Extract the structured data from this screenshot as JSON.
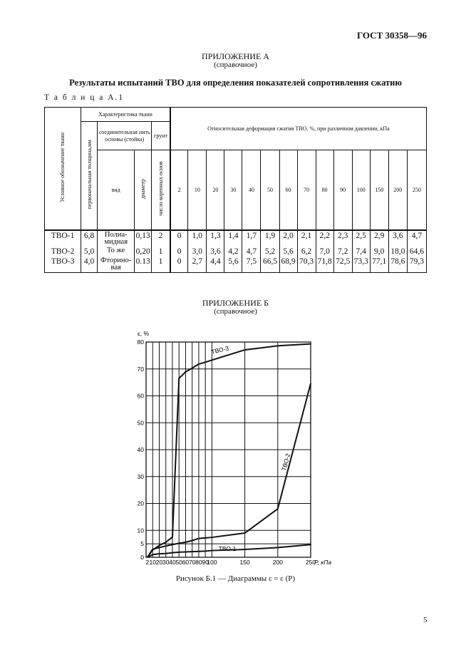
{
  "header": {
    "standard": "ГОСТ 30358—96"
  },
  "appendix_a": {
    "title": "ПРИЛОЖЕНИЕ А",
    "note": "(справочное)",
    "heading": "Результаты испытаний ТВО для определения показателей сопротивления сжатию",
    "table_label": "Т а б л и ц а  А.1"
  },
  "table": {
    "col_designation": "Условное обозначение ткани",
    "group_fabric": "Характеристика ткани",
    "col_thickness": "первоначальная толщина,мм",
    "group_thread": "соединительная нить основы (стойка)",
    "group_ground": "грунт",
    "col_kind": "вид",
    "col_diameter": "диаметр",
    "col_root_count": "число коренных основ",
    "group_deformation": "Относительная деформация сжатия ТВО, %, при различном давлении, кПа",
    "pressures": [
      "2",
      "10",
      "20",
      "30",
      "40",
      "50",
      "60",
      "70",
      "80",
      "90",
      "100",
      "150",
      "200",
      "250"
    ],
    "rows": [
      {
        "name": "ТВО-1",
        "thickness": "6,8",
        "kind": "Полиа-мидная",
        "diameter": "0,13",
        "roots": "2",
        "values": [
          "0",
          "1,0",
          "1,3",
          "1,4",
          "1,7",
          "1,9",
          "2,0",
          "2,1",
          "2,2",
          "2,3",
          "2,5",
          "2,9",
          "3,6",
          "4,7"
        ]
      },
      {
        "name": "ТВО-2",
        "thickness": "5,0",
        "kind": "То же",
        "diameter": "0,20",
        "roots": "1",
        "values": [
          "0",
          "3,0",
          "3,6",
          "4,2",
          "4,7",
          "5,2",
          "5,6",
          "6,2",
          "7,0",
          "7,2",
          "7,4",
          "9,0",
          "18,0",
          "64,6"
        ]
      },
      {
        "name": "ТВО-3",
        "thickness": "4,0",
        "kind": "Фторино-вая",
        "diameter": "0.13",
        "roots": "1",
        "values": [
          "0",
          "2,7",
          "4,4",
          "5,6",
          "7,5",
          "66,5",
          "68,9",
          "70,3",
          "71,8",
          "72,5",
          "73,3",
          "77,1",
          "78,6",
          "79,3"
        ]
      }
    ]
  },
  "appendix_b": {
    "title": "ПРИЛОЖЕНИЕ Б",
    "note": "(справочное)",
    "caption": "Рисунок Б.1 — Диаграммы ε = ε (P)"
  },
  "chart_data": {
    "type": "line",
    "ylabel": "ε, %",
    "xlabel": "P, кПа",
    "xlim": [
      0,
      250
    ],
    "ylim": [
      0,
      80
    ],
    "x_ticks": [
      2,
      10,
      20,
      30,
      40,
      50,
      60,
      70,
      80,
      90,
      100,
      150,
      200,
      250
    ],
    "y_ticks": [
      0,
      5,
      10,
      20,
      30,
      40,
      50,
      60,
      70,
      80
    ],
    "grid": true,
    "x": [
      2,
      10,
      20,
      30,
      40,
      50,
      60,
      70,
      80,
      90,
      100,
      150,
      200,
      250
    ],
    "series": [
      {
        "name": "ТВО-1",
        "values": [
          0,
          1.0,
          1.3,
          1.4,
          1.7,
          1.9,
          2.0,
          2.1,
          2.2,
          2.3,
          2.5,
          2.9,
          3.6,
          4.7
        ]
      },
      {
        "name": "ТВО-2",
        "values": [
          0,
          3.0,
          3.6,
          4.2,
          4.7,
          5.2,
          5.6,
          6.2,
          7.0,
          7.2,
          7.4,
          9.0,
          18.0,
          64.6
        ]
      },
      {
        "name": "ТВО-3",
        "values": [
          0,
          2.7,
          4.4,
          5.6,
          7.5,
          66.5,
          68.9,
          70.3,
          71.8,
          72.5,
          73.3,
          77.1,
          78.6,
          79.3
        ]
      }
    ]
  },
  "page_number": "5"
}
